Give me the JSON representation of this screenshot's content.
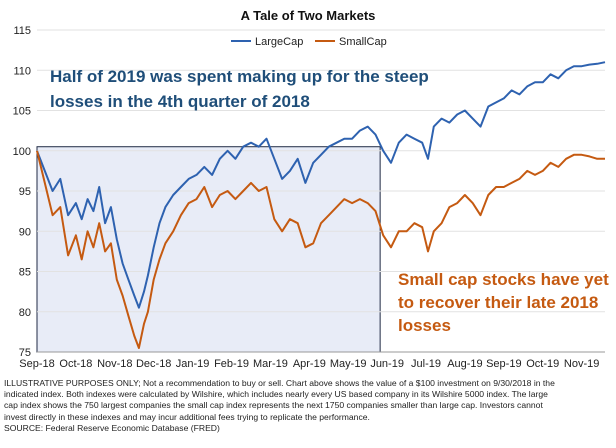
{
  "chart_data": {
    "type": "line",
    "title": "A Tale of Two Markets",
    "xlabel": "",
    "ylabel": "",
    "ylim": [
      75,
      115
    ],
    "yticks": [
      75,
      80,
      85,
      90,
      95,
      100,
      105,
      110,
      115
    ],
    "xticks": [
      "Sep-18",
      "Oct-18",
      "Nov-18",
      "Dec-18",
      "Jan-19",
      "Feb-19",
      "Mar-19",
      "Apr-19",
      "May-19",
      "Jun-19",
      "Jul-19",
      "Aug-19",
      "Sep-19",
      "Oct-19",
      "Nov-19"
    ],
    "grid": "horizontal",
    "legend": "top-right",
    "highlight_region": {
      "from": "Sep-18",
      "to": "Jun-19",
      "color": "#e8ecf7"
    },
    "series": [
      {
        "name": "LargeCap",
        "color": "#2e62b0",
        "x": [
          0,
          0.2,
          0.4,
          0.6,
          0.8,
          1.0,
          1.15,
          1.3,
          1.45,
          1.6,
          1.75,
          1.9,
          2.05,
          2.2,
          2.35,
          2.5,
          2.62,
          2.75,
          2.85,
          3.0,
          3.15,
          3.3,
          3.5,
          3.7,
          3.9,
          4.1,
          4.3,
          4.5,
          4.7,
          4.9,
          5.1,
          5.3,
          5.5,
          5.7,
          5.9,
          6.1,
          6.3,
          6.5,
          6.7,
          6.9,
          7.1,
          7.3,
          7.5,
          7.7,
          7.9,
          8.1,
          8.3,
          8.5,
          8.7,
          8.9,
          9.1,
          9.3,
          9.5,
          9.7,
          9.9,
          10.05,
          10.2,
          10.4,
          10.6,
          10.8,
          11.0,
          11.2,
          11.4,
          11.6,
          11.8,
          12.0,
          12.2,
          12.4,
          12.6,
          12.8,
          13.0,
          13.2,
          13.4,
          13.6,
          13.8,
          14.0,
          14.2,
          14.4,
          14.6
        ],
        "values": [
          100.0,
          97.5,
          95.0,
          96.5,
          92.0,
          93.5,
          91.5,
          94.0,
          92.5,
          95.5,
          91.0,
          93.0,
          89.0,
          86.0,
          84.0,
          82.0,
          80.5,
          82.5,
          84.5,
          88.0,
          91.0,
          93.0,
          94.5,
          95.5,
          96.5,
          97.0,
          98.0,
          97.0,
          99.0,
          100.0,
          99.0,
          100.5,
          101.0,
          100.5,
          101.5,
          99.0,
          96.5,
          97.5,
          99.0,
          96.0,
          98.5,
          99.5,
          100.5,
          101.0,
          101.5,
          101.5,
          102.5,
          103.0,
          102.0,
          100.0,
          98.5,
          101.0,
          102.0,
          101.5,
          101.0,
          99.0,
          103.0,
          104.0,
          103.5,
          104.5,
          105.0,
          104.0,
          103.0,
          105.5,
          106.0,
          106.5,
          107.5,
          107.0,
          108.0,
          108.5,
          108.5,
          109.5,
          109.0,
          110.0,
          110.5,
          110.5,
          110.7,
          110.8,
          111.0
        ]
      },
      {
        "name": "SmallCap",
        "color": "#c55a11",
        "x": [
          0,
          0.2,
          0.4,
          0.6,
          0.8,
          1.0,
          1.15,
          1.3,
          1.45,
          1.6,
          1.75,
          1.9,
          2.05,
          2.2,
          2.35,
          2.5,
          2.62,
          2.75,
          2.85,
          3.0,
          3.15,
          3.3,
          3.5,
          3.7,
          3.9,
          4.1,
          4.3,
          4.5,
          4.7,
          4.9,
          5.1,
          5.3,
          5.5,
          5.7,
          5.9,
          6.1,
          6.3,
          6.5,
          6.7,
          6.9,
          7.1,
          7.3,
          7.5,
          7.7,
          7.9,
          8.1,
          8.3,
          8.5,
          8.7,
          8.9,
          9.1,
          9.3,
          9.5,
          9.7,
          9.9,
          10.05,
          10.2,
          10.4,
          10.6,
          10.8,
          11.0,
          11.2,
          11.4,
          11.6,
          11.8,
          12.0,
          12.2,
          12.4,
          12.6,
          12.8,
          13.0,
          13.2,
          13.4,
          13.6,
          13.8,
          14.0,
          14.2,
          14.4,
          14.6
        ],
        "values": [
          100.0,
          96.0,
          92.0,
          93.0,
          87.0,
          89.5,
          86.5,
          90.0,
          88.0,
          91.0,
          87.5,
          88.5,
          84.0,
          82.0,
          79.5,
          77.0,
          75.5,
          78.5,
          80.0,
          84.0,
          86.5,
          88.5,
          90.0,
          92.0,
          93.5,
          94.0,
          95.5,
          93.0,
          94.5,
          95.0,
          94.0,
          95.0,
          96.0,
          95.0,
          95.5,
          91.5,
          90.0,
          91.5,
          91.0,
          88.0,
          88.5,
          91.0,
          92.0,
          93.0,
          94.0,
          93.5,
          94.0,
          93.5,
          92.5,
          89.5,
          88.0,
          90.0,
          90.0,
          91.0,
          90.5,
          87.5,
          90.0,
          91.0,
          93.0,
          93.5,
          94.5,
          93.5,
          92.0,
          94.5,
          95.5,
          95.5,
          96.0,
          96.5,
          97.5,
          97.0,
          97.5,
          98.5,
          98.0,
          99.0,
          99.5,
          99.5,
          99.3,
          99.0,
          99.0
        ]
      }
    ]
  },
  "annotations": {
    "blue_line1": "Half of 2019 was spent making up for the steep",
    "blue_line2": "losses in the 4th quarter of 2018",
    "orange_line1": "Small cap stocks have yet",
    "orange_line2": "to recover their late 2018",
    "orange_line3": "losses"
  },
  "footnote": {
    "line1": "ILLUSTRATIVE PURPOSES ONLY; Not a recommendation to buy or sell. Chart above shows the value of a $100 investment on 9/30/2018 in the",
    "line2": "indicated index. Both indexes were calculated by Wilshire, which includes nearly every US based company in its Wilshire 5000 index. The large",
    "line3": "cap index shows the 750 largest companies the small cap index represents the next 1750 companies smaller than large cap. Investors cannot",
    "line4": "invest directly in these indexes and may incur additional fees trying to replicate the performance.",
    "line5": "SOURCE: Federal Reserve Economic Database (FRED)"
  }
}
